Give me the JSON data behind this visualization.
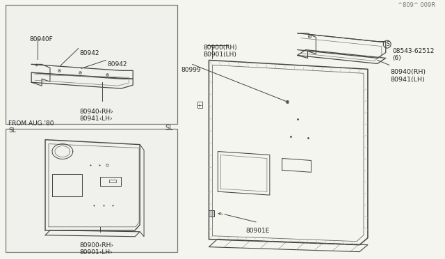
{
  "bg_color": "#f5f5f0",
  "line_color": "#444444",
  "text_color": "#222222",
  "part_number_label": "^809^ 009R",
  "labels": {
    "top_box_part": "80900‹RH›\n80901‹LH›",
    "top_box_sl": "SL",
    "bottom_box_header": "FROM AUG.'80\nSL",
    "bottom_box_part1": "80940‹RH›\n80941‹LH›",
    "bottom_box_part2": "80942",
    "bottom_box_part3": "80942",
    "bottom_box_part4": "80940F",
    "main_label1": "80901E",
    "main_label2": "80999",
    "main_label3": "80900(RH)\nB0901(LH)",
    "main_label4": "80940(RH)\n80941(LH)",
    "main_label5": "08543-62512\n(6)"
  }
}
